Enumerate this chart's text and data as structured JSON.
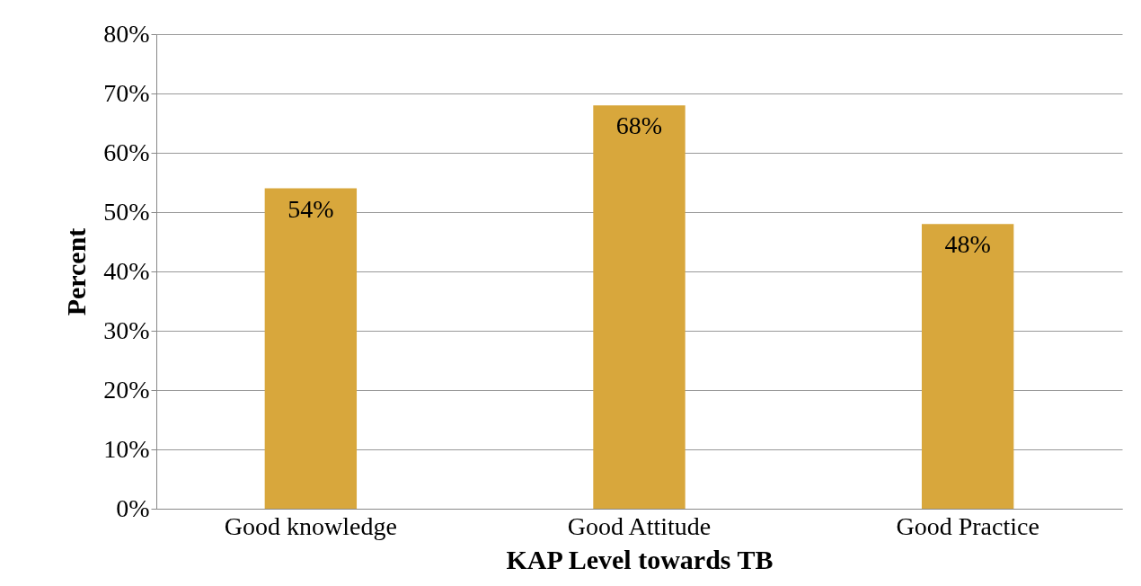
{
  "chart_data": {
    "type": "bar",
    "xlabel": "KAP Level towards TB",
    "ylabel": "Percent",
    "categories": [
      "Good knowledge",
      "Good Attitude",
      "Good Practice"
    ],
    "values": [
      54,
      68,
      48
    ],
    "color": "#d8a73c",
    "value_labels": [
      "54%",
      "68%",
      "48%"
    ],
    "ylim": [
      0,
      80
    ],
    "yticks": [
      {
        "value": 0,
        "label": "0%"
      },
      {
        "value": 10,
        "label": "10%"
      },
      {
        "value": 20,
        "label": "20%"
      },
      {
        "value": 30,
        "label": "30%"
      },
      {
        "value": 40,
        "label": "40%"
      },
      {
        "value": 50,
        "label": "50%"
      },
      {
        "value": 60,
        "label": "60%"
      },
      {
        "value": 70,
        "label": "70%"
      },
      {
        "value": 80,
        "label": "80%"
      }
    ],
    "grid": "y"
  }
}
